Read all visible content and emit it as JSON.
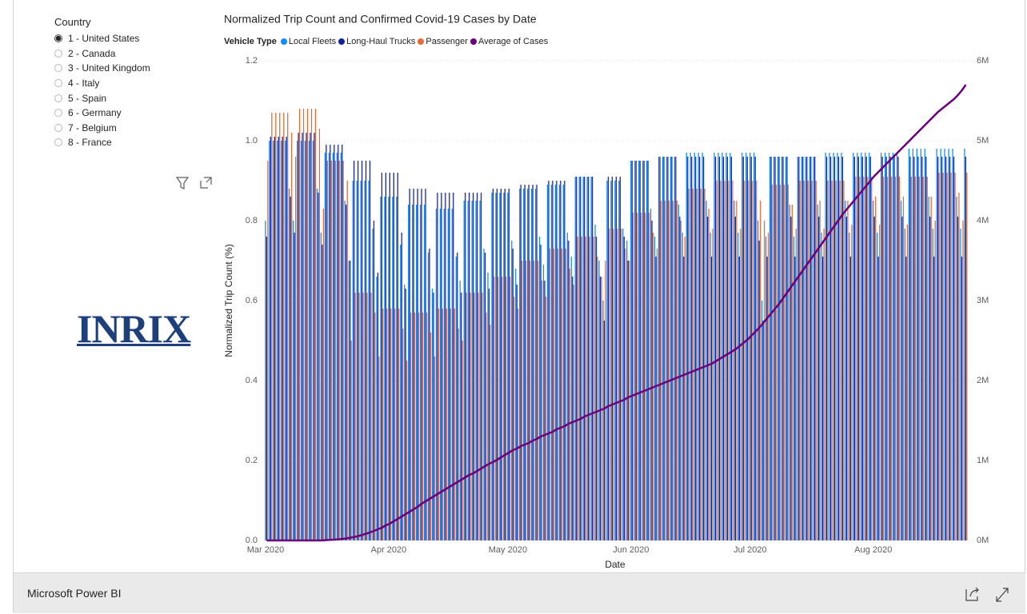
{
  "slicer": {
    "title": "Country",
    "options": [
      "1 - United States",
      "2 - Canada",
      "3 - United Kingdom",
      "4 - Italy",
      "5 - Spain",
      "6 - Germany",
      "7 - Belgium",
      "8 - France"
    ],
    "selected": 0
  },
  "logo": "INRIX",
  "footer": "Microsoft Power BI",
  "chart_data": {
    "type": "bar",
    "title": "Normalized Trip Count and Confirmed Covid-19 Cases by Date",
    "legend_title": "Vehicle Type",
    "y_label": "Normalized Trip Count (%)",
    "x_label": "Date",
    "grid": true,
    "ylim": [
      0,
      1.2
    ],
    "yticks": [
      {
        "value": 0,
        "label": "0.0"
      },
      0.2,
      0.4,
      0.6,
      0.8,
      {
        "value": 1,
        "label": "1.0"
      },
      1.2
    ],
    "y2lim": [
      0,
      6
    ],
    "y2ticks": [
      {
        "value": 0,
        "label": "0M"
      },
      {
        "value": 1,
        "label": "1M"
      },
      {
        "value": 2,
        "label": "2M"
      },
      {
        "value": 3,
        "label": "3M"
      },
      {
        "value": 4,
        "label": "4M"
      },
      {
        "value": 5,
        "label": "5M"
      },
      {
        "value": 6,
        "label": "6M"
      }
    ],
    "categories": [
      "Mar 2020",
      null,
      null,
      null,
      null,
      null,
      null,
      null,
      null,
      null,
      null,
      null,
      null,
      null,
      null,
      null,
      null,
      null,
      null,
      null,
      null,
      null,
      null,
      null,
      null,
      null,
      null,
      null,
      null,
      null,
      null,
      "Apr 2020",
      null,
      null,
      null,
      null,
      null,
      null,
      null,
      null,
      null,
      null,
      null,
      null,
      null,
      null,
      null,
      null,
      null,
      null,
      null,
      null,
      null,
      null,
      null,
      null,
      null,
      null,
      null,
      null,
      null,
      "May 2020",
      null,
      null,
      null,
      null,
      null,
      null,
      null,
      null,
      null,
      null,
      null,
      null,
      null,
      null,
      null,
      null,
      null,
      null,
      null,
      null,
      null,
      null,
      null,
      null,
      null,
      null,
      null,
      null,
      null,
      null,
      "Jun 2020",
      null,
      null,
      null,
      null,
      null,
      null,
      null,
      null,
      null,
      null,
      null,
      null,
      null,
      null,
      null,
      null,
      null,
      null,
      null,
      null,
      null,
      null,
      null,
      null,
      null,
      null,
      null,
      null,
      null,
      "Jul 2020",
      null,
      null,
      null,
      null,
      null,
      null,
      null,
      null,
      null,
      null,
      null,
      null,
      null,
      null,
      null,
      null,
      null,
      null,
      null,
      null,
      null,
      null,
      null,
      null,
      null,
      null,
      null,
      null,
      null,
      null,
      "Aug 2020",
      null,
      null,
      null,
      null,
      null,
      null,
      null,
      null,
      null,
      null,
      null,
      null,
      null,
      null,
      null,
      null,
      null,
      null,
      null,
      null,
      null,
      null,
      null
    ],
    "series": [
      {
        "name": "Local Fleets",
        "color": "#118DFF",
        "values": [
          0.8,
          1,
          1,
          1,
          1,
          1,
          0.88,
          0.8,
          1,
          1,
          1,
          1,
          1,
          0.88,
          0.77,
          0.97,
          0.97,
          0.97,
          0.97,
          0.97,
          0.85,
          0.7,
          0.9,
          0.9,
          0.9,
          0.9,
          0.9,
          0.78,
          0.66,
          0.86,
          0.86,
          0.86,
          0.86,
          0.86,
          0.74,
          0.64,
          0.84,
          0.84,
          0.84,
          0.84,
          0.84,
          0.72,
          0.63,
          0.83,
          0.83,
          0.83,
          0.83,
          0.83,
          0.71,
          0.65,
          0.85,
          0.85,
          0.85,
          0.85,
          0.85,
          0.73,
          0.67,
          0.87,
          0.87,
          0.87,
          0.87,
          0.87,
          0.75,
          0.68,
          0.88,
          0.88,
          0.88,
          0.88,
          0.88,
          0.76,
          0.69,
          0.89,
          0.89,
          0.89,
          0.89,
          0.89,
          0.77,
          0.71,
          0.91,
          0.91,
          0.91,
          0.91,
          0.91,
          0.79,
          0.7,
          0.6,
          0.9,
          0.9,
          0.9,
          0.9,
          0.78,
          0.75,
          0.95,
          0.95,
          0.95,
          0.95,
          0.95,
          0.83,
          0.76,
          0.96,
          0.96,
          0.96,
          0.96,
          0.96,
          0.84,
          0.77,
          0.97,
          0.97,
          0.97,
          0.97,
          0.97,
          0.85,
          0.77,
          0.97,
          0.97,
          0.97,
          0.97,
          0.97,
          0.85,
          0.77,
          0.97,
          0.97,
          0.97,
          0.97,
          0.8,
          0.6,
          0.76,
          0.96,
          0.96,
          0.96,
          0.96,
          0.96,
          0.84,
          0.76,
          0.96,
          0.96,
          0.96,
          0.96,
          0.96,
          0.84,
          0.77,
          0.97,
          0.97,
          0.97,
          0.97,
          0.97,
          0.85,
          0.77,
          0.97,
          0.97,
          0.97,
          0.97,
          0.97,
          0.85,
          0.77,
          0.97,
          0.97,
          0.97,
          0.97,
          0.97,
          0.85,
          0.78,
          0.98,
          0.98,
          0.98,
          0.98,
          0.98,
          0.86,
          0.78,
          0.98,
          0.98,
          0.98,
          0.98,
          0.98,
          0.86,
          0.78,
          0.98
        ]
      },
      {
        "name": "Long-Haul Trucks",
        "color": "#12239E",
        "values": [
          0.76,
          1.01,
          1.01,
          1.01,
          1.01,
          1.01,
          0.86,
          0.77,
          1.02,
          1.02,
          1.02,
          1.02,
          1.02,
          0.87,
          0.74,
          0.99,
          0.99,
          0.99,
          0.99,
          0.99,
          0.84,
          0.7,
          0.95,
          0.95,
          0.95,
          0.95,
          0.95,
          0.8,
          0.67,
          0.92,
          0.92,
          0.92,
          0.92,
          0.92,
          0.77,
          0.63,
          0.88,
          0.88,
          0.88,
          0.88,
          0.88,
          0.73,
          0.62,
          0.87,
          0.87,
          0.87,
          0.87,
          0.87,
          0.72,
          0.62,
          0.87,
          0.87,
          0.87,
          0.87,
          0.87,
          0.72,
          0.63,
          0.88,
          0.88,
          0.88,
          0.88,
          0.88,
          0.73,
          0.64,
          0.89,
          0.89,
          0.89,
          0.89,
          0.89,
          0.74,
          0.65,
          0.9,
          0.9,
          0.9,
          0.9,
          0.9,
          0.75,
          0.66,
          0.91,
          0.91,
          0.91,
          0.91,
          0.91,
          0.76,
          0.66,
          0.55,
          0.91,
          0.91,
          0.91,
          0.91,
          0.76,
          0.7,
          0.95,
          0.95,
          0.95,
          0.95,
          0.95,
          0.8,
          0.71,
          0.96,
          0.96,
          0.96,
          0.96,
          0.96,
          0.81,
          0.71,
          0.96,
          0.96,
          0.96,
          0.96,
          0.96,
          0.81,
          0.71,
          0.96,
          0.96,
          0.96,
          0.96,
          0.96,
          0.81,
          0.71,
          0.96,
          0.96,
          0.96,
          0.96,
          0.75,
          0.55,
          0.71,
          0.96,
          0.96,
          0.96,
          0.96,
          0.96,
          0.81,
          0.71,
          0.96,
          0.96,
          0.96,
          0.96,
          0.96,
          0.81,
          0.71,
          0.96,
          0.96,
          0.96,
          0.96,
          0.96,
          0.81,
          0.71,
          0.96,
          0.96,
          0.96,
          0.96,
          0.96,
          0.81,
          0.71,
          0.96,
          0.96,
          0.96,
          0.96,
          0.96,
          0.81,
          0.71,
          0.96,
          0.96,
          0.96,
          0.96,
          0.96,
          0.81,
          0.71,
          0.96,
          0.96,
          0.96,
          0.96,
          0.96,
          0.81,
          0.71,
          0.96
        ]
      },
      {
        "name": "Passenger",
        "color": "#E66C37",
        "values": [
          0.95,
          1.07,
          1.07,
          1.07,
          1.07,
          1.07,
          1.02,
          0.96,
          1.08,
          1.08,
          1.08,
          1.08,
          1.08,
          1.03,
          0.83,
          0.95,
          0.95,
          0.95,
          0.95,
          0.95,
          0.9,
          0.5,
          0.62,
          0.62,
          0.62,
          0.62,
          0.62,
          0.57,
          0.46,
          0.58,
          0.58,
          0.58,
          0.58,
          0.58,
          0.53,
          0.45,
          0.57,
          0.57,
          0.57,
          0.57,
          0.57,
          0.52,
          0.46,
          0.58,
          0.58,
          0.58,
          0.58,
          0.58,
          0.53,
          0.5,
          0.62,
          0.62,
          0.62,
          0.62,
          0.62,
          0.57,
          0.54,
          0.66,
          0.66,
          0.66,
          0.66,
          0.66,
          0.61,
          0.58,
          0.7,
          0.7,
          0.7,
          0.7,
          0.7,
          0.65,
          0.61,
          0.73,
          0.73,
          0.73,
          0.73,
          0.73,
          0.68,
          0.64,
          0.76,
          0.76,
          0.76,
          0.76,
          0.76,
          0.71,
          0.66,
          0.7,
          0.78,
          0.78,
          0.78,
          0.78,
          0.73,
          0.7,
          0.82,
          0.82,
          0.82,
          0.82,
          0.82,
          0.77,
          0.73,
          0.85,
          0.85,
          0.85,
          0.85,
          0.85,
          0.8,
          0.76,
          0.88,
          0.88,
          0.88,
          0.88,
          0.88,
          0.83,
          0.78,
          0.9,
          0.9,
          0.9,
          0.9,
          0.9,
          0.85,
          0.78,
          0.9,
          0.9,
          0.9,
          0.9,
          0.85,
          0.8,
          0.77,
          0.89,
          0.89,
          0.89,
          0.89,
          0.89,
          0.84,
          0.78,
          0.9,
          0.9,
          0.9,
          0.9,
          0.9,
          0.85,
          0.78,
          0.9,
          0.9,
          0.9,
          0.9,
          0.9,
          0.85,
          0.79,
          0.91,
          0.91,
          0.91,
          0.91,
          0.91,
          0.86,
          0.79,
          0.91,
          0.91,
          0.91,
          0.91,
          0.91,
          0.86,
          0.79,
          0.91,
          0.91,
          0.91,
          0.91,
          0.91,
          0.86,
          0.8,
          0.92,
          0.92,
          0.92,
          0.92,
          0.92,
          0.87,
          0.8,
          0.92
        ]
      },
      {
        "name": "Average of Cases",
        "color": "#6B007B",
        "type": "line",
        "axis": "y2",
        "values": [
          0,
          0,
          0,
          0,
          0,
          0,
          0,
          0,
          0,
          0,
          0,
          0,
          0,
          0,
          0,
          0.005,
          0.007,
          0.01,
          0.014,
          0.019,
          0.025,
          0.034,
          0.043,
          0.054,
          0.068,
          0.085,
          0.1,
          0.12,
          0.14,
          0.16,
          0.19,
          0.21,
          0.24,
          0.27,
          0.3,
          0.33,
          0.36,
          0.39,
          0.42,
          0.46,
          0.49,
          0.52,
          0.55,
          0.58,
          0.61,
          0.64,
          0.67,
          0.7,
          0.73,
          0.76,
          0.79,
          0.82,
          0.84,
          0.87,
          0.9,
          0.93,
          0.96,
          0.98,
          1.01,
          1.04,
          1.07,
          1.1,
          1.13,
          1.15,
          1.18,
          1.2,
          1.22,
          1.25,
          1.27,
          1.3,
          1.32,
          1.34,
          1.36,
          1.39,
          1.41,
          1.43,
          1.46,
          1.48,
          1.5,
          1.52,
          1.55,
          1.57,
          1.59,
          1.61,
          1.63,
          1.65,
          1.68,
          1.7,
          1.72,
          1.74,
          1.76,
          1.79,
          1.81,
          1.83,
          1.85,
          1.87,
          1.89,
          1.91,
          1.93,
          1.95,
          1.97,
          1.99,
          2.01,
          2.03,
          2.05,
          2.07,
          2.09,
          2.11,
          2.13,
          2.15,
          2.17,
          2.19,
          2.21,
          2.24,
          2.27,
          2.3,
          2.33,
          2.36,
          2.39,
          2.43,
          2.47,
          2.51,
          2.56,
          2.61,
          2.66,
          2.72,
          2.78,
          2.84,
          2.9,
          2.96,
          3.03,
          3.1,
          3.17,
          3.24,
          3.31,
          3.38,
          3.45,
          3.52,
          3.59,
          3.66,
          3.73,
          3.8,
          3.87,
          3.94,
          4.01,
          4.08,
          4.14,
          4.2,
          4.26,
          4.32,
          4.38,
          4.44,
          4.5,
          4.56,
          4.61,
          4.66,
          4.71,
          4.76,
          4.81,
          4.86,
          4.91,
          4.96,
          5.01,
          5.06,
          5.11,
          5.16,
          5.21,
          5.26,
          5.31,
          5.36,
          5.4,
          5.44,
          5.48,
          5.52,
          5.57,
          5.63,
          5.7
        ]
      }
    ]
  }
}
